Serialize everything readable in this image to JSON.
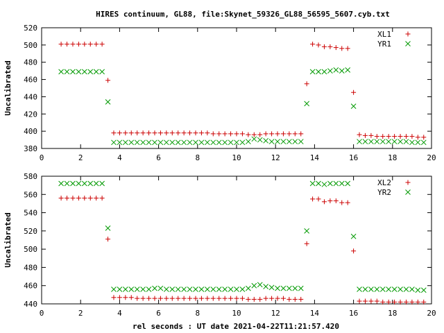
{
  "title": "HIRES continuum, GL88, file:Skynet_59326_GL88_56595_5607.cyb.txt",
  "xlabel": "rel seconds : UT date 2021-04-22T11:21:57.420",
  "colors": {
    "red": "#cc0000",
    "green": "#009900",
    "axis": "#000000"
  },
  "chart_data": [
    {
      "type": "scatter",
      "ylabel": "Uncalibrated",
      "xlim": [
        0,
        20
      ],
      "ylim": [
        380,
        520
      ],
      "x_ticks": [
        "0",
        "2",
        "4",
        "6",
        "8",
        "10",
        "12",
        "14",
        "16",
        "18",
        "20"
      ],
      "y_ticks": [
        "380",
        "400",
        "420",
        "440",
        "460",
        "480",
        "500",
        "520"
      ],
      "legend_position": "top-right",
      "series": [
        {
          "name": "XL1",
          "marker": "plus",
          "color": "#cc0000",
          "points": [
            [
              1.0,
              501
            ],
            [
              1.3,
              501
            ],
            [
              1.6,
              501
            ],
            [
              1.9,
              501
            ],
            [
              2.2,
              501
            ],
            [
              2.5,
              501
            ],
            [
              2.8,
              501
            ],
            [
              3.1,
              501
            ],
            [
              3.4,
              459
            ],
            [
              3.7,
              398
            ],
            [
              4.0,
              398
            ],
            [
              4.3,
              398
            ],
            [
              4.6,
              398
            ],
            [
              4.9,
              398
            ],
            [
              5.2,
              398
            ],
            [
              5.5,
              398
            ],
            [
              5.8,
              398
            ],
            [
              6.1,
              398
            ],
            [
              6.4,
              398
            ],
            [
              6.7,
              398
            ],
            [
              7.0,
              398
            ],
            [
              7.3,
              398
            ],
            [
              7.6,
              398
            ],
            [
              7.9,
              398
            ],
            [
              8.2,
              398
            ],
            [
              8.5,
              398
            ],
            [
              8.8,
              397
            ],
            [
              9.1,
              397
            ],
            [
              9.4,
              397
            ],
            [
              9.7,
              397
            ],
            [
              10.0,
              397
            ],
            [
              10.3,
              397
            ],
            [
              10.6,
              396
            ],
            [
              10.9,
              396
            ],
            [
              11.2,
              396
            ],
            [
              11.5,
              397
            ],
            [
              11.8,
              397
            ],
            [
              12.1,
              397
            ],
            [
              12.4,
              397
            ],
            [
              12.7,
              397
            ],
            [
              13.0,
              397
            ],
            [
              13.3,
              397
            ],
            [
              13.6,
              455
            ],
            [
              13.9,
              501
            ],
            [
              14.2,
              500
            ],
            [
              14.5,
              498
            ],
            [
              14.8,
              498
            ],
            [
              15.1,
              497
            ],
            [
              15.4,
              496
            ],
            [
              15.7,
              496
            ],
            [
              16.0,
              445
            ],
            [
              16.3,
              396
            ],
            [
              16.6,
              395
            ],
            [
              16.9,
              395
            ],
            [
              17.2,
              394
            ],
            [
              17.5,
              394
            ],
            [
              17.8,
              394
            ],
            [
              18.1,
              394
            ],
            [
              18.4,
              394
            ],
            [
              18.7,
              394
            ],
            [
              19.0,
              394
            ],
            [
              19.3,
              393
            ],
            [
              19.6,
              393
            ]
          ]
        },
        {
          "name": "YR1",
          "marker": "cross",
          "color": "#009900",
          "points": [
            [
              1.0,
              469
            ],
            [
              1.3,
              469
            ],
            [
              1.6,
              469
            ],
            [
              1.9,
              469
            ],
            [
              2.2,
              469
            ],
            [
              2.5,
              469
            ],
            [
              2.8,
              469
            ],
            [
              3.1,
              469
            ],
            [
              3.4,
              434
            ],
            [
              3.7,
              387
            ],
            [
              4.0,
              387
            ],
            [
              4.3,
              387
            ],
            [
              4.6,
              387
            ],
            [
              4.9,
              387
            ],
            [
              5.2,
              387
            ],
            [
              5.5,
              387
            ],
            [
              5.8,
              387
            ],
            [
              6.1,
              387
            ],
            [
              6.4,
              387
            ],
            [
              6.7,
              387
            ],
            [
              7.0,
              387
            ],
            [
              7.3,
              387
            ],
            [
              7.6,
              387
            ],
            [
              7.9,
              387
            ],
            [
              8.2,
              387
            ],
            [
              8.5,
              387
            ],
            [
              8.8,
              387
            ],
            [
              9.1,
              387
            ],
            [
              9.4,
              387
            ],
            [
              9.7,
              387
            ],
            [
              10.0,
              387
            ],
            [
              10.3,
              387
            ],
            [
              10.6,
              388
            ],
            [
              10.9,
              391
            ],
            [
              11.2,
              390
            ],
            [
              11.5,
              389
            ],
            [
              11.8,
              388
            ],
            [
              12.1,
              388
            ],
            [
              12.4,
              388
            ],
            [
              12.7,
              388
            ],
            [
              13.0,
              388
            ],
            [
              13.3,
              388
            ],
            [
              13.6,
              432
            ],
            [
              13.9,
              469
            ],
            [
              14.2,
              469
            ],
            [
              14.5,
              469
            ],
            [
              14.8,
              470
            ],
            [
              15.1,
              471
            ],
            [
              15.4,
              470
            ],
            [
              15.7,
              471
            ],
            [
              16.0,
              429
            ],
            [
              16.3,
              388
            ],
            [
              16.6,
              388
            ],
            [
              16.9,
              388
            ],
            [
              17.2,
              388
            ],
            [
              17.5,
              388
            ],
            [
              17.8,
              388
            ],
            [
              18.1,
              388
            ],
            [
              18.4,
              388
            ],
            [
              18.7,
              388
            ],
            [
              19.0,
              387
            ],
            [
              19.3,
              387
            ],
            [
              19.6,
              387
            ]
          ]
        }
      ]
    },
    {
      "type": "scatter",
      "ylabel": "Uncalibrated",
      "xlim": [
        0,
        20
      ],
      "ylim": [
        440,
        580
      ],
      "x_ticks": [
        "0",
        "2",
        "4",
        "6",
        "8",
        "10",
        "12",
        "14",
        "16",
        "18",
        "20"
      ],
      "y_ticks": [
        "440",
        "460",
        "480",
        "500",
        "520",
        "540",
        "560",
        "580"
      ],
      "legend_position": "top-right",
      "series": [
        {
          "name": "XL2",
          "marker": "plus",
          "color": "#cc0000",
          "points": [
            [
              1.0,
              556
            ],
            [
              1.3,
              556
            ],
            [
              1.6,
              556
            ],
            [
              1.9,
              556
            ],
            [
              2.2,
              556
            ],
            [
              2.5,
              556
            ],
            [
              2.8,
              556
            ],
            [
              3.1,
              556
            ],
            [
              3.4,
              511
            ],
            [
              3.7,
              447
            ],
            [
              4.0,
              447
            ],
            [
              4.3,
              447
            ],
            [
              4.6,
              447
            ],
            [
              4.9,
              446
            ],
            [
              5.2,
              446
            ],
            [
              5.5,
              446
            ],
            [
              5.8,
              446
            ],
            [
              6.1,
              446
            ],
            [
              6.4,
              446
            ],
            [
              6.7,
              446
            ],
            [
              7.0,
              446
            ],
            [
              7.3,
              446
            ],
            [
              7.6,
              446
            ],
            [
              7.9,
              446
            ],
            [
              8.2,
              446
            ],
            [
              8.5,
              446
            ],
            [
              8.8,
              446
            ],
            [
              9.1,
              446
            ],
            [
              9.4,
              446
            ],
            [
              9.7,
              446
            ],
            [
              10.0,
              446
            ],
            [
              10.3,
              446
            ],
            [
              10.6,
              445
            ],
            [
              10.9,
              445
            ],
            [
              11.2,
              445
            ],
            [
              11.5,
              446
            ],
            [
              11.8,
              446
            ],
            [
              12.1,
              446
            ],
            [
              12.4,
              446
            ],
            [
              12.7,
              445
            ],
            [
              13.0,
              445
            ],
            [
              13.3,
              445
            ],
            [
              13.6,
              506
            ],
            [
              13.9,
              555
            ],
            [
              14.2,
              555
            ],
            [
              14.5,
              552
            ],
            [
              14.8,
              553
            ],
            [
              15.1,
              553
            ],
            [
              15.4,
              551
            ],
            [
              15.7,
              551
            ],
            [
              16.0,
              498
            ],
            [
              16.3,
              443
            ],
            [
              16.6,
              443
            ],
            [
              16.9,
              443
            ],
            [
              17.2,
              443
            ],
            [
              17.5,
              442
            ],
            [
              17.8,
              442
            ],
            [
              18.1,
              442
            ],
            [
              18.4,
              442
            ],
            [
              18.7,
              442
            ],
            [
              19.0,
              442
            ],
            [
              19.3,
              442
            ],
            [
              19.6,
              442
            ]
          ]
        },
        {
          "name": "YR2",
          "marker": "cross",
          "color": "#009900",
          "points": [
            [
              1.0,
              572
            ],
            [
              1.3,
              572
            ],
            [
              1.6,
              572
            ],
            [
              1.9,
              572
            ],
            [
              2.2,
              572
            ],
            [
              2.5,
              572
            ],
            [
              2.8,
              572
            ],
            [
              3.1,
              572
            ],
            [
              3.4,
              523
            ],
            [
              3.7,
              456
            ],
            [
              4.0,
              456
            ],
            [
              4.3,
              456
            ],
            [
              4.6,
              456
            ],
            [
              4.9,
              456
            ],
            [
              5.2,
              456
            ],
            [
              5.5,
              456
            ],
            [
              5.8,
              457
            ],
            [
              6.1,
              457
            ],
            [
              6.4,
              456
            ],
            [
              6.7,
              456
            ],
            [
              7.0,
              456
            ],
            [
              7.3,
              456
            ],
            [
              7.6,
              456
            ],
            [
              7.9,
              456
            ],
            [
              8.2,
              456
            ],
            [
              8.5,
              456
            ],
            [
              8.8,
              456
            ],
            [
              9.1,
              456
            ],
            [
              9.4,
              456
            ],
            [
              9.7,
              456
            ],
            [
              10.0,
              456
            ],
            [
              10.3,
              456
            ],
            [
              10.6,
              457
            ],
            [
              10.9,
              460
            ],
            [
              11.2,
              461
            ],
            [
              11.5,
              459
            ],
            [
              11.8,
              458
            ],
            [
              12.1,
              457
            ],
            [
              12.4,
              457
            ],
            [
              12.7,
              457
            ],
            [
              13.0,
              457
            ],
            [
              13.3,
              457
            ],
            [
              13.6,
              520
            ],
            [
              13.9,
              572
            ],
            [
              14.2,
              572
            ],
            [
              14.5,
              571
            ],
            [
              14.8,
              572
            ],
            [
              15.1,
              572
            ],
            [
              15.4,
              572
            ],
            [
              15.7,
              572
            ],
            [
              16.0,
              514
            ],
            [
              16.3,
              456
            ],
            [
              16.6,
              456
            ],
            [
              16.9,
              456
            ],
            [
              17.2,
              456
            ],
            [
              17.5,
              456
            ],
            [
              17.8,
              456
            ],
            [
              18.1,
              456
            ],
            [
              18.4,
              456
            ],
            [
              18.7,
              456
            ],
            [
              19.0,
              456
            ],
            [
              19.3,
              455
            ],
            [
              19.6,
              455
            ]
          ]
        }
      ]
    }
  ]
}
